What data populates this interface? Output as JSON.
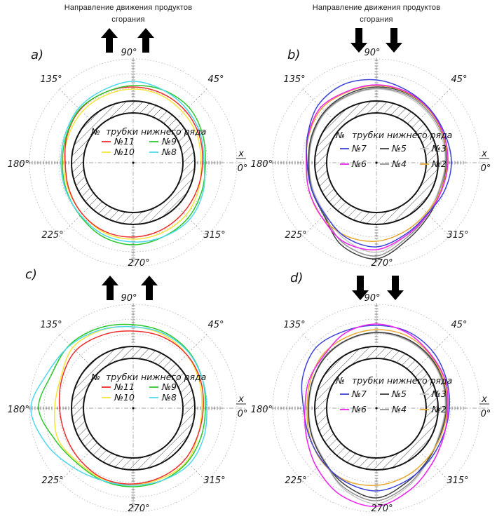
{
  "figure": {
    "flow_label_line1": "Направление движения продуктов",
    "flow_label_line2": "сгорания"
  },
  "chart_data": [
    {
      "id": "a",
      "type": "line",
      "polar": true,
      "panel_label": "a)",
      "flow_direction": "up",
      "x_axis_label": "x",
      "angle_unit": "degrees",
      "angle_labels": [
        {
          "deg": 0,
          "label": "0°"
        },
        {
          "deg": 45,
          "label": "45°"
        },
        {
          "deg": 90,
          "label": "90°"
        },
        {
          "deg": 135,
          "label": "135°"
        },
        {
          "deg": 180,
          "label": "180°"
        },
        {
          "deg": 225,
          "label": "225°"
        },
        {
          "deg": 270,
          "label": "270°"
        },
        {
          "deg": 315,
          "label": "315°"
        }
      ],
      "geometry": {
        "grid_radii": [
          106,
          127,
          148
        ],
        "tube_wall_outer_r": 88,
        "tube_wall_inner_r": 71,
        "radius_units": "relative display units (no radial scale labeled in figure)"
      },
      "legend": {
        "no_symbol": "№",
        "title": "трубки нижнего ряда",
        "columns": 2
      },
      "angles_deg": [
        0,
        22.5,
        45,
        67.5,
        90,
        112.5,
        135,
        157.5,
        180,
        202.5,
        225,
        247.5,
        270,
        292.5,
        315,
        337.5
      ],
      "series": [
        {
          "name": "№11",
          "color": "#ee2e2e",
          "values": [
            99,
            102,
            105,
            107,
            108,
            108,
            107,
            102,
            97,
            99,
            103,
            106,
            106,
            104,
            101,
            99
          ]
        },
        {
          "name": "№10",
          "color": "#f5e43c",
          "values": [
            97,
            99,
            101,
            104,
            105,
            104,
            103,
            100,
            99,
            100,
            103,
            108,
            109,
            108,
            106,
            101
          ]
        },
        {
          "name": "№9",
          "color": "#2ec82e",
          "values": [
            103,
            107,
            112,
            112,
            110,
            108,
            108,
            103,
            101,
            103,
            107,
            114,
            117,
            114,
            111,
            106
          ]
        },
        {
          "name": "№8",
          "color": "#4ed7ee",
          "values": [
            101,
            104,
            108,
            112,
            116,
            112,
            110,
            105,
            103,
            104,
            106,
            111,
            113,
            114,
            114,
            108
          ]
        }
      ]
    },
    {
      "id": "b",
      "type": "line",
      "polar": true,
      "panel_label": "b)",
      "flow_direction": "down",
      "x_axis_label": "x",
      "angle_unit": "degrees",
      "angle_labels": [
        {
          "deg": 0,
          "label": "0°"
        },
        {
          "deg": 45,
          "label": "45°"
        },
        {
          "deg": 90,
          "label": "90°"
        },
        {
          "deg": 135,
          "label": "135°"
        },
        {
          "deg": 180,
          "label": "180°"
        },
        {
          "deg": 225,
          "label": "225°"
        },
        {
          "deg": 270,
          "label": "270°"
        },
        {
          "deg": 315,
          "label": "315°"
        }
      ],
      "geometry": {
        "grid_radii": [
          106,
          127,
          148
        ],
        "tube_wall_outer_r": 88,
        "tube_wall_inner_r": 71,
        "radius_units": "relative display units (no radial scale labeled in figure)"
      },
      "legend": {
        "no_symbol": "№",
        "title": "трубки нижнего ряда",
        "columns": 3
      },
      "angles_deg": [
        0,
        22.5,
        45,
        67.5,
        90,
        112.5,
        135,
        157.5,
        180,
        202.5,
        225,
        247.5,
        270,
        292.5,
        315,
        337.5
      ],
      "series": [
        {
          "name": "№7",
          "color": "#3c44d8",
          "values": [
            107,
            106,
            108,
            112,
            118,
            121,
            117,
            106,
            99,
            100,
            104,
            115,
            120,
            110,
            103,
            105
          ]
        },
        {
          "name": "№6",
          "color": "#ee22ee",
          "values": [
            102,
            104,
            107,
            110,
            111,
            110,
            112,
            105,
            100,
            104,
            110,
            122,
            124,
            112,
            104,
            101
          ]
        },
        {
          "name": "№5",
          "color": "#3f3f3f",
          "values": [
            100,
            103,
            106,
            108,
            108,
            106,
            104,
            100,
            97,
            100,
            106,
            128,
            137,
            118,
            106,
            100
          ]
        },
        {
          "name": "№4",
          "color": "#909090",
          "values": [
            99,
            102,
            104,
            106,
            106,
            104,
            103,
            99,
            96,
            99,
            105,
            124,
            133,
            115,
            104,
            98
          ]
        },
        {
          "name": "№3",
          "color": "#c8c8c8",
          "values": [
            98,
            100,
            102,
            104,
            105,
            103,
            102,
            98,
            96,
            98,
            103,
            118,
            128,
            112,
            102,
            97
          ]
        },
        {
          "name": "№2",
          "color": "#e9a832",
          "values": [
            101,
            103,
            106,
            109,
            110,
            109,
            110,
            104,
            100,
            104,
            110,
            113,
            112,
            106,
            101,
            100
          ]
        }
      ]
    },
    {
      "id": "c",
      "type": "line",
      "polar": true,
      "panel_label": "c)",
      "flow_direction": "up",
      "x_axis_label": "x",
      "angle_unit": "degrees",
      "angle_labels": [
        {
          "deg": 0,
          "label": "0°"
        },
        {
          "deg": 45,
          "label": "45°"
        },
        {
          "deg": 90,
          "label": "90°"
        },
        {
          "deg": 135,
          "label": "135°"
        },
        {
          "deg": 180,
          "label": "180°"
        },
        {
          "deg": 225,
          "label": "225°"
        },
        {
          "deg": 270,
          "label": "270°"
        },
        {
          "deg": 315,
          "label": "315°"
        }
      ],
      "geometry": {
        "grid_radii": [
          106,
          127,
          148
        ],
        "tube_wall_outer_r": 88,
        "tube_wall_inner_r": 71,
        "radius_units": "relative display units (no radial scale labeled in figure)"
      },
      "legend": {
        "no_symbol": "№",
        "title": "трубки нижнего ряда",
        "columns": 2
      },
      "angles_deg": [
        0,
        22.5,
        45,
        67.5,
        90,
        112.5,
        135,
        157.5,
        180,
        202.5,
        225,
        247.5,
        270,
        292.5,
        315,
        337.5
      ],
      "series": [
        {
          "name": "№11",
          "color": "#ee2e2e",
          "values": [
            100,
            104,
            108,
            110,
            110,
            113,
            116,
            110,
            105,
            104,
            106,
            109,
            108,
            106,
            104,
            100
          ]
        },
        {
          "name": "№10",
          "color": "#f5e43c",
          "values": [
            98,
            102,
            108,
            113,
            116,
            120,
            122,
            112,
            112,
            116,
            110,
            110,
            109,
            108,
            108,
            100
          ]
        },
        {
          "name": "№9",
          "color": "#2ec82e",
          "values": [
            103,
            107,
            113,
            117,
            119,
            124,
            128,
            126,
            135,
            120,
            112,
            112,
            112,
            111,
            109,
            105
          ]
        },
        {
          "name": "№8",
          "color": "#4ed7ee",
          "values": [
            105,
            107,
            112,
            115,
            116,
            121,
            127,
            132,
            146,
            134,
            120,
            112,
            110,
            111,
            113,
            109
          ]
        }
      ]
    },
    {
      "id": "d",
      "type": "line",
      "polar": true,
      "panel_label": "d)",
      "flow_direction": "down",
      "x_axis_label": "x",
      "angle_unit": "degrees",
      "angle_labels": [
        {
          "deg": 0,
          "label": "0°"
        },
        {
          "deg": 45,
          "label": "45°"
        },
        {
          "deg": 90,
          "label": "90°"
        },
        {
          "deg": 135,
          "label": "135°"
        },
        {
          "deg": 180,
          "label": "180°"
        },
        {
          "deg": 225,
          "label": "225°"
        },
        {
          "deg": 270,
          "label": "270°"
        },
        {
          "deg": 315,
          "label": "315°"
        }
      ],
      "geometry": {
        "grid_radii": [
          106,
          127,
          148
        ],
        "tube_wall_outer_r": 88,
        "tube_wall_inner_r": 71,
        "radius_units": "relative display units (no radial scale labeled in figure)"
      },
      "legend": {
        "no_symbol": "№",
        "title": "трубки нижнего ряда",
        "columns": 3
      },
      "angles_deg": [
        0,
        22.5,
        45,
        67.5,
        90,
        112.5,
        135,
        157.5,
        180,
        202.5,
        225,
        247.5,
        270,
        292.5,
        315,
        337.5
      ],
      "series": [
        {
          "name": "№7",
          "color": "#3c44d8",
          "values": [
            104,
            108,
            114,
            118,
            118,
            119,
            122,
            114,
            104,
            104,
            108,
            114,
            118,
            112,
            106,
            103
          ]
        },
        {
          "name": "№6",
          "color": "#ee22ee",
          "values": [
            102,
            106,
            109,
            116,
            120,
            116,
            106,
            104,
            102,
            108,
            120,
            134,
            140,
            126,
            112,
            104
          ]
        },
        {
          "name": "№5",
          "color": "#3f3f3f",
          "values": [
            100,
            103,
            106,
            108,
            108,
            106,
            103,
            99,
            97,
            100,
            106,
            118,
            128,
            114,
            104,
            99
          ]
        },
        {
          "name": "№4",
          "color": "#909090",
          "values": [
            99,
            102,
            105,
            107,
            108,
            106,
            104,
            99,
            97,
            100,
            106,
            122,
            132,
            118,
            104,
            98
          ]
        },
        {
          "name": "№3",
          "color": "#c8c8c8",
          "values": [
            98,
            101,
            104,
            106,
            107,
            105,
            103,
            98,
            96,
            99,
            105,
            124,
            136,
            120,
            105,
            97
          ]
        },
        {
          "name": "№2",
          "color": "#e9a832",
          "values": [
            101,
            104,
            108,
            112,
            112,
            110,
            108,
            102,
            99,
            103,
            109,
            112,
            110,
            106,
            102,
            100
          ]
        }
      ]
    }
  ]
}
